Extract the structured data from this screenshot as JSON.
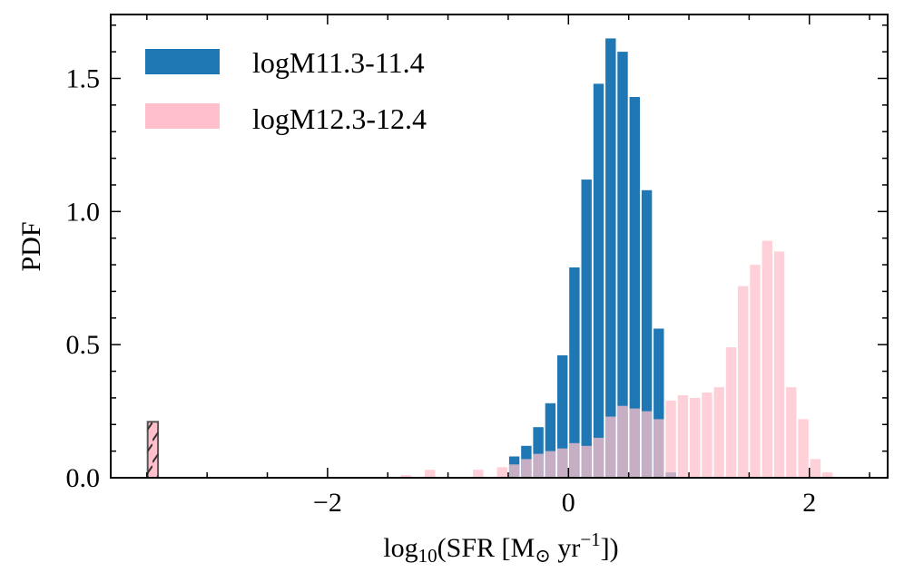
{
  "chart_data": {
    "type": "bar",
    "title": "",
    "xlabel": "log10(SFR [M⊙ yr⁻¹])",
    "ylabel": "PDF",
    "xlim": [
      -3.8,
      2.65
    ],
    "ylim": [
      0,
      1.74
    ],
    "bin_width": 0.1,
    "x_ticks": [
      -2,
      0,
      2
    ],
    "x_tick_labels": [
      "−2",
      "0",
      "2"
    ],
    "y_ticks": [
      0,
      0.5,
      1.0,
      1.5
    ],
    "y_tick_labels": [
      "0.0",
      "0.5",
      "1.0",
      "1.5"
    ],
    "legend_position": "top-left",
    "series": [
      {
        "name": "logM11.3-11.4",
        "color": "#1f77b4",
        "bin_centers": [
          -0.45,
          -0.35,
          -0.25,
          -0.15,
          -0.05,
          0.05,
          0.15,
          0.25,
          0.35,
          0.45,
          0.55,
          0.65,
          0.75,
          0.85
        ],
        "values": [
          0.08,
          0.12,
          0.19,
          0.28,
          0.46,
          0.79,
          1.12,
          1.48,
          1.65,
          1.6,
          1.43,
          1.08,
          0.56,
          0.02
        ]
      },
      {
        "name": "logM12.3-12.4",
        "color": "#ffc0cb",
        "bin_centers": [
          -1.35,
          -1.15,
          -0.75,
          -0.55,
          -0.45,
          -0.35,
          -0.25,
          -0.15,
          -0.05,
          0.05,
          0.15,
          0.25,
          0.35,
          0.45,
          0.55,
          0.65,
          0.75,
          0.85,
          0.95,
          1.05,
          1.15,
          1.25,
          1.35,
          1.45,
          1.55,
          1.65,
          1.75,
          1.85,
          1.95,
          2.05,
          2.15
        ],
        "values": [
          0.01,
          0.03,
          0.03,
          0.04,
          0.05,
          0.07,
          0.09,
          0.1,
          0.11,
          0.13,
          0.12,
          0.15,
          0.23,
          0.27,
          0.26,
          0.25,
          0.22,
          0.29,
          0.31,
          0.3,
          0.32,
          0.34,
          0.49,
          0.72,
          0.8,
          0.89,
          0.85,
          0.34,
          0.22,
          0.07,
          0.02
        ]
      }
    ],
    "annotations": [
      {
        "type": "hatched-bar",
        "bin_center": -3.45,
        "value": 0.21,
        "color": "#ffc0cb"
      }
    ]
  }
}
